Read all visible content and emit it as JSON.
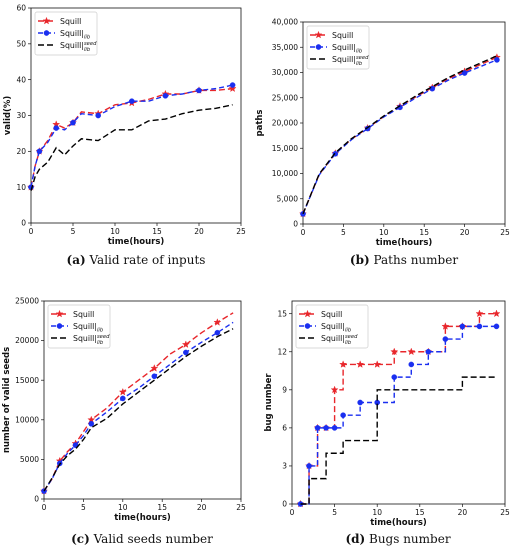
{
  "chart_data": [
    {
      "panel": "a",
      "type": "line",
      "caption_label": "(a)",
      "caption_text": "Valid rate of inputs",
      "xlabel": "time(hours)",
      "ylabel": "valid(%)",
      "xlim": [
        0,
        25
      ],
      "ylim": [
        0,
        60
      ],
      "xticks": [
        0,
        5,
        10,
        15,
        20,
        25
      ],
      "yticks": [
        0,
        10,
        20,
        30,
        40,
        50,
        60
      ],
      "legend_position": "top-left",
      "series": [
        {
          "name": "Squill",
          "color": "#e8262b",
          "marker": "star",
          "dash": "6,3",
          "x": [
            0,
            0.5,
            1,
            2,
            3,
            4,
            5,
            6,
            8,
            10,
            12,
            14,
            16,
            18,
            20,
            22,
            24
          ],
          "y": [
            10,
            16,
            20,
            23,
            27.5,
            26.5,
            28,
            31,
            30.5,
            33,
            33.5,
            34.5,
            36,
            36,
            37,
            37,
            37.5
          ]
        },
        {
          "name": "Squill|lib",
          "color": "#1a2ff0",
          "marker": "circle",
          "dash": "5,3",
          "x": [
            0,
            0.5,
            1,
            2,
            3,
            4,
            5,
            6,
            8,
            10,
            12,
            14,
            16,
            18,
            20,
            22,
            24
          ],
          "y": [
            10,
            16,
            20,
            22.5,
            26.5,
            26,
            28,
            30.5,
            30,
            32.5,
            34,
            34,
            35.5,
            36,
            37,
            37.5,
            38.5
          ]
        },
        {
          "name": "Squill|seed lib",
          "color": "#000000",
          "marker": "none",
          "dash": "6,3",
          "x": [
            0,
            0.5,
            1,
            2,
            3,
            4,
            5,
            6,
            8,
            10,
            12,
            14,
            16,
            18,
            20,
            22,
            24
          ],
          "y": [
            9,
            13,
            15,
            17,
            21,
            19,
            21.5,
            23.5,
            23,
            26,
            26,
            28.5,
            29,
            30.5,
            31.5,
            32,
            33
          ]
        }
      ]
    },
    {
      "panel": "b",
      "type": "line",
      "caption_label": "(b)",
      "caption_text": "Paths number",
      "xlabel": "time(hours)",
      "ylabel": "paths",
      "xlim": [
        0,
        25
      ],
      "ylim": [
        0,
        40000
      ],
      "xticks": [
        0,
        5,
        10,
        15,
        20,
        25
      ],
      "yticks": [
        0,
        5000,
        10000,
        15000,
        20000,
        25000,
        30000,
        35000,
        40000
      ],
      "ytick_labels": [
        "0",
        "5,000",
        "10,000",
        "15,000",
        "20,000",
        "25,000",
        "30,000",
        "35,000",
        "40,000"
      ],
      "legend_position": "top-left",
      "series": [
        {
          "name": "Squill",
          "color": "#e8262b",
          "marker": "star",
          "dash": "6,3",
          "x": [
            0,
            2,
            4,
            6,
            8,
            10,
            12,
            14,
            16,
            18,
            20,
            22,
            24
          ],
          "y": [
            2000,
            9800,
            14000,
            16800,
            19000,
            21300,
            23300,
            25200,
            27000,
            28800,
            30200,
            31600,
            33000
          ]
        },
        {
          "name": "Squill|lib",
          "color": "#1a2ff0",
          "marker": "circle",
          "dash": "5,3",
          "x": [
            0,
            2,
            4,
            6,
            8,
            10,
            12,
            14,
            16,
            18,
            20,
            22,
            24
          ],
          "y": [
            2000,
            9700,
            13900,
            16700,
            18900,
            21200,
            23100,
            25000,
            26800,
            28500,
            29900,
            31200,
            32500
          ]
        },
        {
          "name": "Squill|seed lib",
          "color": "#000000",
          "marker": "none",
          "dash": "6,3",
          "x": [
            0,
            2,
            4,
            6,
            8,
            10,
            12,
            14,
            16,
            18,
            20,
            22,
            24
          ],
          "y": [
            2000,
            9900,
            14100,
            16900,
            19100,
            21400,
            23400,
            25400,
            27200,
            29000,
            30500,
            31900,
            33300
          ]
        }
      ]
    },
    {
      "panel": "c",
      "type": "line",
      "caption_label": "(c)",
      "caption_text": "Valid seeds number",
      "xlabel": "time(hours)",
      "ylabel": "number of valid seeds",
      "xlim": [
        0,
        25
      ],
      "ylim": [
        0,
        25000
      ],
      "xticks": [
        0,
        5,
        10,
        15,
        20,
        25
      ],
      "yticks": [
        0,
        5000,
        10000,
        15000,
        20000,
        25000
      ],
      "ytick_labels": [
        "0",
        "5000",
        "10000",
        "15000",
        "20000",
        "25000"
      ],
      "legend_position": "top-left",
      "series": [
        {
          "name": "Squill",
          "color": "#e8262b",
          "marker": "star",
          "dash": "6,3",
          "x": [
            0,
            1,
            2,
            3,
            4,
            5,
            6,
            8,
            10,
            12,
            14,
            16,
            18,
            20,
            22,
            24
          ],
          "y": [
            1000,
            2500,
            4800,
            6000,
            7000,
            8500,
            10000,
            11500,
            13500,
            15000,
            16500,
            18300,
            19500,
            21000,
            22300,
            23500
          ]
        },
        {
          "name": "Squill|lib",
          "color": "#1a2ff0",
          "marker": "circle",
          "dash": "5,3",
          "x": [
            0,
            1,
            2,
            3,
            4,
            5,
            6,
            8,
            10,
            12,
            14,
            16,
            18,
            20,
            22,
            24
          ],
          "y": [
            1000,
            2500,
            4500,
            5800,
            6800,
            8000,
            9500,
            11000,
            12700,
            14000,
            15500,
            17000,
            18500,
            19800,
            21000,
            22300
          ]
        },
        {
          "name": "Squill|seed lib",
          "color": "#000000",
          "marker": "none",
          "dash": "6,3",
          "x": [
            0,
            1,
            2,
            3,
            4,
            5,
            6,
            8,
            10,
            12,
            14,
            16,
            18,
            20,
            22,
            24
          ],
          "y": [
            1000,
            2600,
            4400,
            5500,
            6300,
            7500,
            9000,
            10200,
            12000,
            13500,
            15000,
            16500,
            18000,
            19300,
            20500,
            21500
          ]
        }
      ]
    },
    {
      "panel": "d",
      "type": "step",
      "caption_label": "(d)",
      "caption_text": "Bugs number",
      "xlabel": "time(hours)",
      "ylabel": "bug number",
      "xlim": [
        0,
        25
      ],
      "ylim": [
        0,
        16
      ],
      "xticks": [
        0,
        5,
        10,
        15,
        20,
        25
      ],
      "yticks": [
        0,
        3,
        6,
        9,
        12,
        15
      ],
      "legend_position": "top-left",
      "series": [
        {
          "name": "Squill",
          "color": "#e8262b",
          "marker": "star",
          "dash": "6,3",
          "x": [
            1,
            2,
            3,
            4,
            5,
            6,
            8,
            10,
            12,
            14,
            16,
            18,
            20,
            22,
            24
          ],
          "y": [
            0,
            3,
            6,
            6,
            9,
            11,
            11,
            11,
            12,
            12,
            12,
            14,
            14,
            15,
            15
          ]
        },
        {
          "name": "Squill|lib",
          "color": "#1a2ff0",
          "marker": "circle",
          "dash": "5,3",
          "x": [
            1,
            2,
            3,
            4,
            5,
            6,
            8,
            10,
            12,
            14,
            16,
            18,
            20,
            22,
            24
          ],
          "y": [
            0,
            3,
            6,
            6,
            6,
            7,
            8,
            8,
            10,
            11,
            12,
            13,
            14,
            14,
            14
          ]
        },
        {
          "name": "Squill|seed lib",
          "color": "#000000",
          "marker": "none",
          "dash": "6,3",
          "x": [
            1,
            2,
            3,
            4,
            5,
            6,
            8,
            10,
            12,
            14,
            16,
            18,
            20,
            22,
            24
          ],
          "y": [
            0,
            2,
            2,
            4,
            4,
            5,
            5,
            9,
            9,
            9,
            9,
            9,
            10,
            10,
            10
          ]
        }
      ]
    }
  ]
}
